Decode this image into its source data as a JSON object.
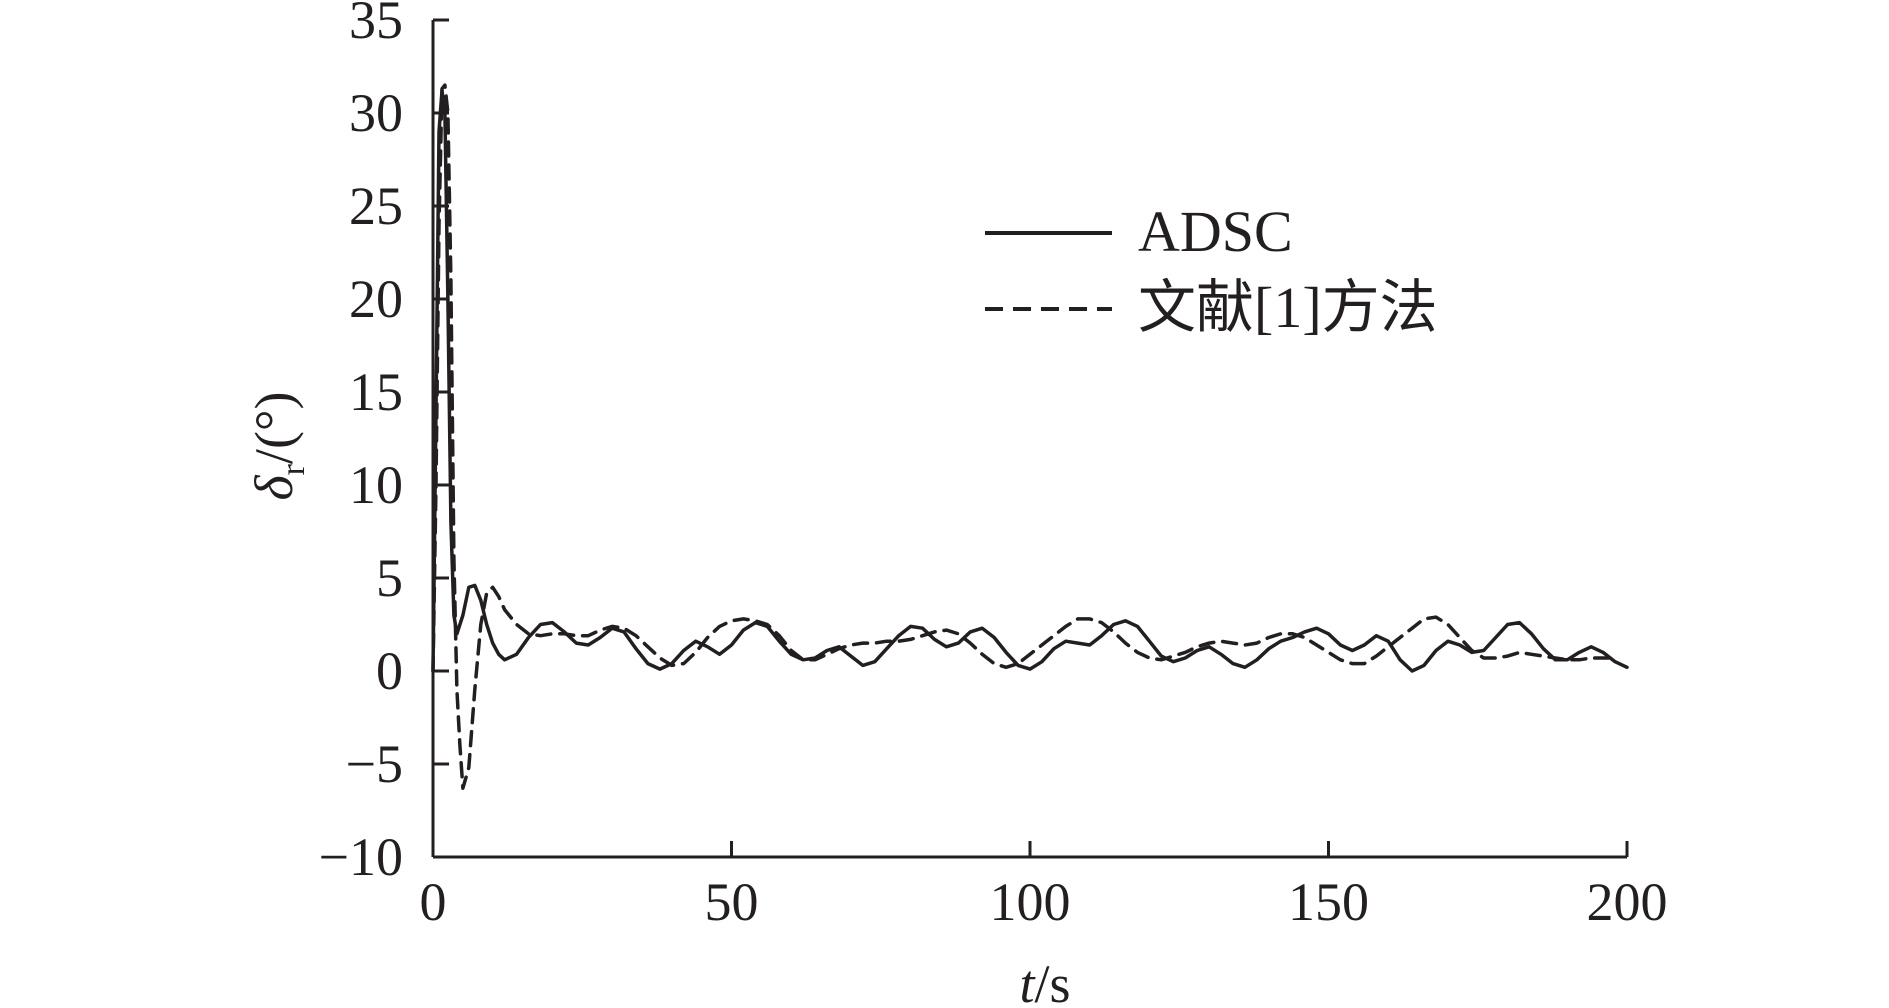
{
  "chart_data": {
    "type": "line",
    "xlabel": "t/s",
    "ylabel": "δr/(°)",
    "xlim": [
      0,
      200
    ],
    "ylim": [
      -10,
      35
    ],
    "xticks": [
      0,
      50,
      100,
      150,
      200
    ],
    "yticks": [
      -10,
      -5,
      0,
      5,
      10,
      15,
      20,
      25,
      30,
      35
    ],
    "xtick_labels": [
      "0",
      "50",
      "100",
      "150",
      "200"
    ],
    "ytick_labels": [
      "−10",
      "−5",
      "0",
      "5",
      "10",
      "15",
      "20",
      "25",
      "30",
      "35"
    ],
    "grid": false,
    "legend_position": "top-right",
    "series": [
      {
        "name": "ADSC",
        "style": "solid",
        "color": "#231f20",
        "x": [
          0,
          0.5,
          1,
          1.5,
          2,
          2.5,
          3,
          3.5,
          4,
          5,
          6,
          7,
          8,
          9,
          10,
          11,
          12,
          14,
          16,
          18,
          20,
          22,
          24,
          26,
          28,
          30,
          32,
          34,
          36,
          38,
          40,
          42,
          44,
          46,
          48,
          50,
          52,
          54,
          56,
          58,
          60,
          62,
          64,
          66,
          68,
          70,
          72,
          74,
          76,
          78,
          80,
          82,
          84,
          86,
          88,
          90,
          92,
          94,
          96,
          98,
          100,
          102,
          104,
          106,
          108,
          110,
          112,
          114,
          116,
          118,
          120,
          122,
          124,
          126,
          128,
          130,
          132,
          134,
          136,
          138,
          140,
          142,
          144,
          146,
          148,
          150,
          152,
          154,
          156,
          158,
          160,
          162,
          164,
          166,
          168,
          170,
          172,
          174,
          176,
          178,
          180,
          182,
          184,
          186,
          188,
          190,
          192,
          194,
          196,
          198,
          200
        ],
        "y": [
          0,
          14,
          29,
          31.2,
          30,
          20,
          8,
          3,
          2,
          3,
          4.5,
          4.6,
          3.8,
          2.5,
          1.5,
          0.9,
          0.6,
          0.9,
          1.8,
          2.5,
          2.6,
          2.1,
          1.5,
          1.4,
          1.8,
          2.3,
          2.1,
          1.2,
          0.4,
          0.1,
          0.4,
          1.1,
          1.6,
          1.3,
          0.9,
          1.4,
          2.2,
          2.6,
          2.4,
          1.6,
          0.9,
          0.6,
          0.7,
          1.1,
          1.3,
          0.8,
          0.3,
          0.5,
          1.2,
          1.9,
          2.4,
          2.3,
          1.7,
          1.3,
          1.5,
          2.1,
          2.3,
          1.8,
          1.0,
          0.3,
          0.1,
          0.5,
          1.2,
          1.6,
          1.5,
          1.4,
          1.9,
          2.5,
          2.7,
          2.4,
          1.6,
          0.8,
          0.5,
          0.7,
          1.1,
          1.3,
          0.9,
          0.4,
          0.2,
          0.6,
          1.2,
          1.6,
          1.8,
          2.1,
          2.3,
          2.0,
          1.4,
          1.1,
          1.4,
          1.9,
          1.6,
          0.6,
          0.0,
          0.3,
          1.1,
          1.6,
          1.4,
          1.0,
          1.1,
          1.8,
          2.5,
          2.6,
          2.0,
          1.2,
          0.6,
          0.6,
          1.0,
          1.3,
          1.0,
          0.5,
          0.2
        ]
      },
      {
        "name": "文献[1]方法",
        "style": "dashed",
        "color": "#231f20",
        "x": [
          0,
          0.5,
          1,
          1.5,
          2,
          2.5,
          3,
          3.5,
          4,
          4.5,
          5,
          6,
          7,
          8,
          9,
          10,
          11,
          12,
          14,
          16,
          18,
          20,
          22,
          24,
          26,
          28,
          30,
          32,
          34,
          36,
          38,
          40,
          42,
          44,
          46,
          48,
          50,
          52,
          54,
          56,
          58,
          60,
          62,
          64,
          66,
          68,
          70,
          72,
          74,
          76,
          78,
          80,
          82,
          84,
          86,
          88,
          90,
          92,
          94,
          96,
          98,
          100,
          102,
          104,
          106,
          108,
          110,
          112,
          114,
          116,
          118,
          120,
          122,
          124,
          126,
          128,
          130,
          132,
          134,
          136,
          138,
          140,
          142,
          144,
          146,
          148,
          150,
          152,
          154,
          156,
          158,
          160,
          162,
          164,
          166,
          168,
          170,
          172,
          174,
          176,
          178,
          180,
          182,
          184,
          186,
          188,
          190,
          192,
          194,
          196,
          198
        ],
        "y": [
          0,
          10,
          24,
          31.3,
          31.5,
          30,
          21,
          6,
          -1,
          -4,
          -6.3,
          -5.2,
          -1.0,
          2.5,
          4.2,
          4.5,
          4.0,
          3.3,
          2.5,
          2.0,
          1.9,
          2.0,
          2.0,
          1.9,
          1.9,
          2.2,
          2.4,
          2.3,
          1.9,
          1.3,
          0.7,
          0.3,
          0.4,
          1.0,
          1.8,
          2.4,
          2.7,
          2.8,
          2.7,
          2.5,
          1.9,
          1.1,
          0.6,
          0.6,
          0.9,
          1.2,
          1.4,
          1.5,
          1.5,
          1.6,
          1.6,
          1.7,
          1.9,
          2.1,
          2.2,
          2.0,
          1.5,
          0.9,
          0.4,
          0.2,
          0.4,
          0.9,
          1.4,
          1.9,
          2.4,
          2.8,
          2.8,
          2.6,
          2.1,
          1.5,
          1.0,
          0.7,
          0.6,
          0.8,
          1.0,
          1.3,
          1.5,
          1.6,
          1.5,
          1.4,
          1.5,
          1.8,
          2.0,
          2.0,
          1.8,
          1.4,
          1.0,
          0.6,
          0.4,
          0.4,
          0.8,
          1.3,
          1.8,
          2.3,
          2.8,
          2.9,
          2.5,
          1.8,
          1.1,
          0.7,
          0.7,
          0.8,
          1.0,
          0.9,
          0.8,
          0.7,
          0.6,
          0.6,
          0.7,
          0.7,
          0.7
        ]
      }
    ]
  }
}
